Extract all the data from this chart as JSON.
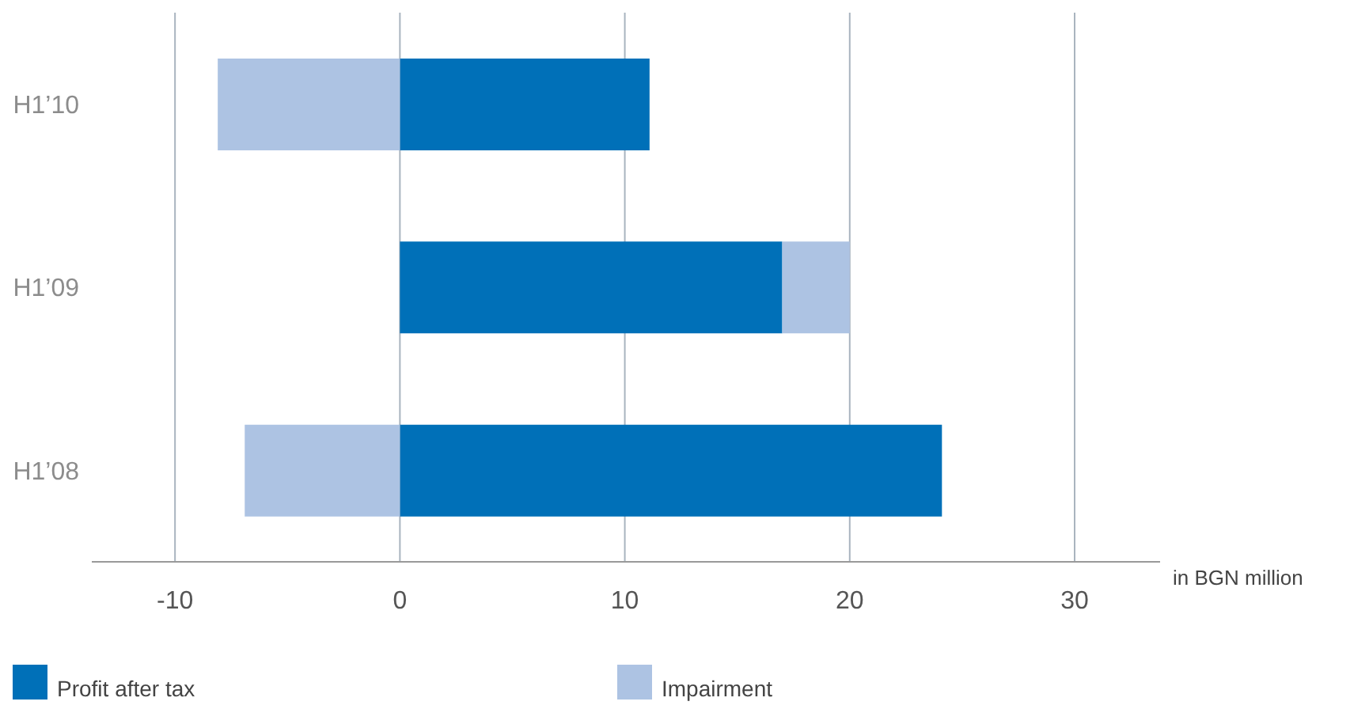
{
  "chart_data": {
    "type": "bar",
    "orientation": "horizontal",
    "stacked": true,
    "categories": [
      "H1’10",
      "H1’09",
      "H1’08"
    ],
    "series": [
      {
        "name": "Profit after tax",
        "color": "#0070b8",
        "values": [
          11.1,
          17.0,
          24.1
        ]
      },
      {
        "name": "Impairment",
        "color": "#adc3e3",
        "values": [
          -8.1,
          3.0,
          -6.9
        ]
      }
    ],
    "xlim": [
      -13.7,
      33.8
    ],
    "xticks": [
      -10,
      0,
      10,
      20,
      30
    ],
    "xlabel": "in BGN million",
    "grid": "x",
    "legend": "bottom"
  }
}
